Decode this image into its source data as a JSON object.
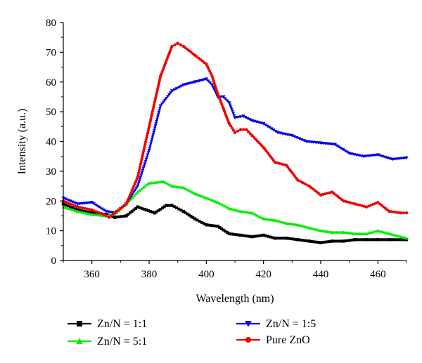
{
  "chart_data": {
    "type": "line",
    "xlabel": "Wavelength (nm)",
    "ylabel": "Intensity (a.u.)",
    "xlim": [
      350,
      470
    ],
    "ylim": [
      0,
      80
    ],
    "xticks": [
      360,
      380,
      400,
      420,
      440,
      460
    ],
    "yticks": [
      0,
      10,
      20,
      30,
      40,
      50,
      60,
      70,
      80
    ],
    "grid": false,
    "legend_position": "below plot",
    "series": [
      {
        "name": "Zn/N = 1:1",
        "color": "#000000",
        "marker": "square",
        "x": [
          350,
          355,
          360,
          365,
          368,
          372,
          376,
          379,
          382,
          386,
          388,
          392,
          396,
          400,
          404,
          408,
          412,
          416,
          420,
          424,
          428,
          432,
          436,
          440,
          444,
          448,
          452,
          456,
          460,
          464,
          470
        ],
        "y": [
          19,
          17,
          16,
          15.5,
          14.5,
          15,
          18,
          17,
          16,
          18.5,
          18.5,
          16.5,
          14,
          12,
          11.5,
          9,
          8.5,
          8,
          8.5,
          7.5,
          7.5,
          7,
          6.5,
          6,
          6.5,
          6.5,
          7,
          7,
          7,
          7,
          7
        ]
      },
      {
        "name": "Zn/N = 5:1",
        "color": "#00ee00",
        "marker": "triangle-up",
        "x": [
          350,
          355,
          360,
          365,
          368,
          372,
          376,
          380,
          385,
          388,
          392,
          396,
          400,
          404,
          408,
          412,
          416,
          420,
          424,
          428,
          432,
          436,
          440,
          444,
          448,
          452,
          456,
          460,
          464,
          470
        ],
        "y": [
          18,
          16.5,
          15.5,
          15,
          15.5,
          19,
          23,
          26,
          26.5,
          25,
          24.5,
          22.5,
          21,
          19.5,
          17.5,
          16.5,
          16,
          14,
          13.5,
          12.5,
          12,
          11,
          10,
          9.5,
          9.5,
          9,
          9,
          10,
          9,
          7.5
        ]
      },
      {
        "name": "Zn/N = 1:5",
        "color": "#0000ee",
        "marker": "triangle-down",
        "x": [
          350,
          355,
          360,
          365,
          368,
          372,
          376,
          380,
          384,
          388,
          392,
          396,
          400,
          402,
          404,
          406,
          408,
          410,
          413,
          416,
          420,
          425,
          430,
          435,
          440,
          445,
          450,
          455,
          460,
          465,
          470
        ],
        "y": [
          21,
          19,
          19.5,
          16.5,
          16,
          19,
          25,
          37,
          52,
          57,
          59,
          60,
          61,
          59,
          55,
          55,
          53,
          48,
          48.5,
          47,
          46,
          43,
          42,
          40,
          39.5,
          39,
          36,
          35,
          35.5,
          34,
          34.5
        ]
      },
      {
        "name": "Pure ZnO",
        "color": "#ee0000",
        "marker": "circle",
        "x": [
          350,
          355,
          360,
          364,
          366,
          368,
          372,
          376,
          380,
          384,
          388,
          390,
          392,
          396,
          400,
          402,
          404,
          406,
          408,
          410,
          412,
          414,
          416,
          420,
          424,
          428,
          432,
          436,
          440,
          444,
          448,
          452,
          456,
          460,
          464,
          468,
          470
        ],
        "y": [
          20,
          18,
          17,
          15.5,
          14.5,
          16,
          19,
          28,
          45,
          62,
          72,
          73,
          72,
          69,
          66,
          62,
          56,
          51,
          46,
          43,
          44,
          44,
          42,
          38,
          33,
          32,
          27,
          25,
          22,
          23,
          20,
          19,
          18,
          19.5,
          16.5,
          16,
          16
        ]
      }
    ]
  }
}
